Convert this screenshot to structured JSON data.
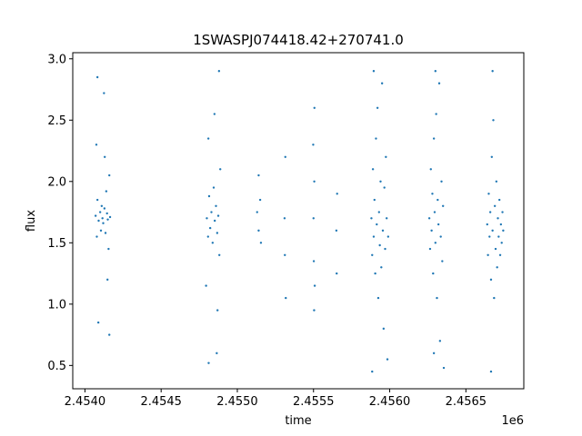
{
  "chart_data": {
    "type": "scatter",
    "title": "1SWASPJ074418.42+270741.0",
    "xlabel": "time",
    "ylabel": "flux",
    "x_offset_label": "1e6",
    "xlim": [
      2453920,
      2456880
    ],
    "ylim": [
      0.31,
      3.05
    ],
    "x_ticks": [
      2454000,
      2454500,
      2455000,
      2455500,
      2456000,
      2456500
    ],
    "x_tick_labels": [
      "2.4540",
      "2.4545",
      "2.4550",
      "2.4555",
      "2.4560",
      "2.4565"
    ],
    "y_ticks": [
      0.5,
      1.0,
      1.5,
      2.0,
      2.5,
      3.0
    ],
    "y_tick_labels": [
      "0.5",
      "1.0",
      "1.5",
      "2.0",
      "2.5",
      "3.0"
    ],
    "grid": false,
    "legend": "none",
    "marker_color": "#1f77b4",
    "series": [
      {
        "points": [
          [
            2454070,
            1.72
          ],
          [
            2454078,
            1.55
          ],
          [
            2454082,
            1.85
          ],
          [
            2454090,
            1.68
          ],
          [
            2454100,
            1.75
          ],
          [
            2454105,
            1.6
          ],
          [
            2454110,
            1.8
          ],
          [
            2454115,
            1.7
          ],
          [
            2454120,
            1.66
          ],
          [
            2454128,
            1.78
          ],
          [
            2454135,
            1.58
          ],
          [
            2454140,
            1.92
          ],
          [
            2454145,
            1.74
          ],
          [
            2454150,
            1.69
          ],
          [
            2454155,
            1.45
          ],
          [
            2454160,
            2.05
          ],
          [
            2454165,
            1.71
          ],
          [
            2454075,
            2.3
          ],
          [
            2454088,
            0.85
          ],
          [
            2454130,
            2.2
          ],
          [
            2454148,
            1.2
          ],
          [
            2454160,
            0.75
          ],
          [
            2454082,
            2.85
          ],
          [
            2454125,
            2.72
          ],
          [
            2454800,
            1.7
          ],
          [
            2454808,
            1.55
          ],
          [
            2454815,
            1.88
          ],
          [
            2454822,
            1.62
          ],
          [
            2454830,
            1.75
          ],
          [
            2454838,
            1.5
          ],
          [
            2454845,
            1.95
          ],
          [
            2454852,
            1.68
          ],
          [
            2454860,
            1.8
          ],
          [
            2454868,
            1.58
          ],
          [
            2454875,
            1.72
          ],
          [
            2454882,
            1.4
          ],
          [
            2454888,
            2.1
          ],
          [
            2454795,
            1.15
          ],
          [
            2454810,
            2.35
          ],
          [
            2454850,
            2.55
          ],
          [
            2454870,
            0.95
          ],
          [
            2454812,
            0.52
          ],
          [
            2454880,
            2.9
          ],
          [
            2454865,
            0.6
          ],
          [
            2455130,
            1.75
          ],
          [
            2455140,
            1.6
          ],
          [
            2455150,
            1.85
          ],
          [
            2455155,
            1.5
          ],
          [
            2455140,
            2.05
          ],
          [
            2455310,
            1.7
          ],
          [
            2455312,
            1.4
          ],
          [
            2455315,
            2.2
          ],
          [
            2455318,
            1.05
          ],
          [
            2455500,
            1.7
          ],
          [
            2455502,
            1.35
          ],
          [
            2455505,
            2.0
          ],
          [
            2455508,
            1.15
          ],
          [
            2455498,
            2.3
          ],
          [
            2455504,
            0.95
          ],
          [
            2455506,
            2.6
          ],
          [
            2455650,
            1.6
          ],
          [
            2455652,
            1.25
          ],
          [
            2455655,
            1.9
          ],
          [
            2455880,
            1.7
          ],
          [
            2455885,
            1.4
          ],
          [
            2455890,
            2.1
          ],
          [
            2455895,
            1.55
          ],
          [
            2455900,
            1.85
          ],
          [
            2455905,
            1.25
          ],
          [
            2455910,
            2.35
          ],
          [
            2455915,
            1.65
          ],
          [
            2455920,
            2.6
          ],
          [
            2455925,
            1.05
          ],
          [
            2455930,
            1.75
          ],
          [
            2455935,
            1.48
          ],
          [
            2455940,
            2.0
          ],
          [
            2455945,
            1.3
          ],
          [
            2455950,
            2.8
          ],
          [
            2455955,
            1.6
          ],
          [
            2455960,
            0.8
          ],
          [
            2455965,
            1.95
          ],
          [
            2455970,
            1.45
          ],
          [
            2455975,
            2.2
          ],
          [
            2455980,
            1.7
          ],
          [
            2455985,
            0.55
          ],
          [
            2455885,
            0.45
          ],
          [
            2455895,
            2.9
          ],
          [
            2455990,
            1.55
          ],
          [
            2456260,
            1.7
          ],
          [
            2456265,
            1.45
          ],
          [
            2456270,
            2.1
          ],
          [
            2456275,
            1.6
          ],
          [
            2456280,
            1.9
          ],
          [
            2456285,
            1.25
          ],
          [
            2456290,
            2.35
          ],
          [
            2456295,
            1.75
          ],
          [
            2456300,
            1.5
          ],
          [
            2456305,
            2.55
          ],
          [
            2456310,
            1.05
          ],
          [
            2456315,
            1.85
          ],
          [
            2456320,
            1.65
          ],
          [
            2456325,
            2.8
          ],
          [
            2456330,
            0.7
          ],
          [
            2456335,
            1.55
          ],
          [
            2456340,
            2.0
          ],
          [
            2456345,
            1.35
          ],
          [
            2456350,
            1.8
          ],
          [
            2456355,
            0.48
          ],
          [
            2456300,
            2.9
          ],
          [
            2456290,
            0.6
          ],
          [
            2456640,
            1.65
          ],
          [
            2456645,
            1.4
          ],
          [
            2456650,
            1.9
          ],
          [
            2456655,
            1.55
          ],
          [
            2456660,
            1.75
          ],
          [
            2456665,
            1.2
          ],
          [
            2456670,
            2.2
          ],
          [
            2456675,
            1.6
          ],
          [
            2456680,
            2.5
          ],
          [
            2456685,
            1.05
          ],
          [
            2456690,
            1.8
          ],
          [
            2456695,
            1.45
          ],
          [
            2456700,
            2.0
          ],
          [
            2456705,
            1.3
          ],
          [
            2456710,
            1.7
          ],
          [
            2456715,
            1.55
          ],
          [
            2456720,
            1.85
          ],
          [
            2456725,
            1.4
          ],
          [
            2456730,
            1.65
          ],
          [
            2456735,
            1.5
          ],
          [
            2456675,
            2.9
          ],
          [
            2456665,
            0.45
          ],
          [
            2456740,
            1.75
          ],
          [
            2456745,
            1.6
          ]
        ]
      }
    ]
  }
}
